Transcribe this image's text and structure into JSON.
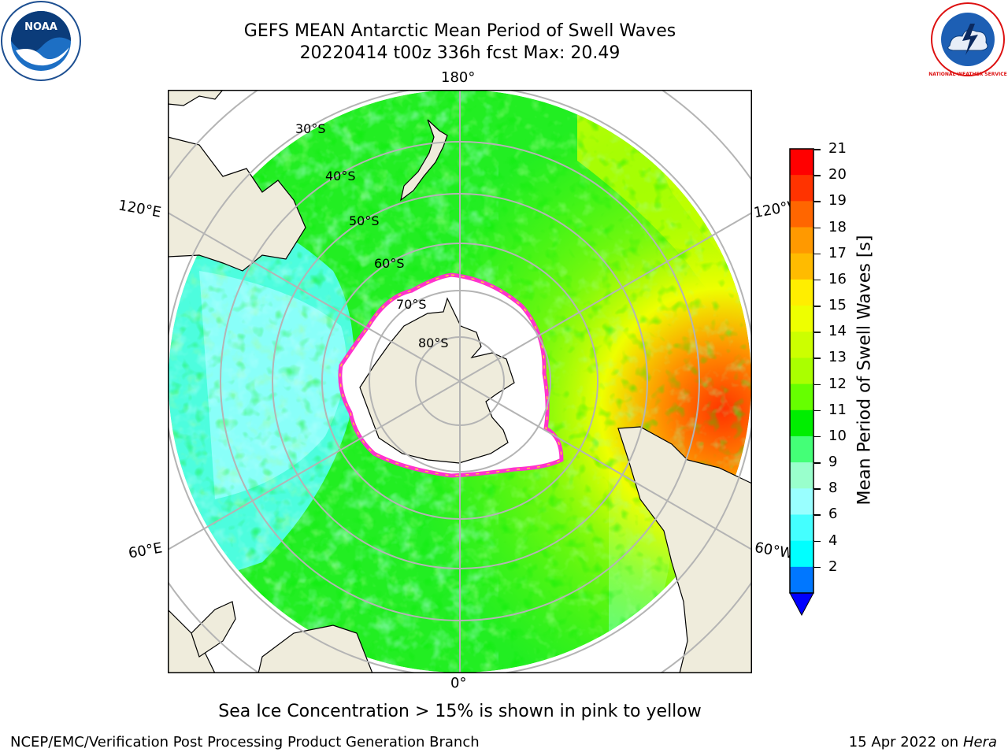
{
  "header": {
    "title_line1": "GEFS MEAN Antarctic Mean Period of Swell Waves",
    "title_line2": "20220414 t00z 336h fcst   Max: 20.49"
  },
  "logos": {
    "left": {
      "icon": "noaa-logo-icon",
      "text": "NOAA"
    },
    "right": {
      "icon": "nws-logo-icon",
      "text": "NATIONAL WEATHER SERVICE"
    }
  },
  "map": {
    "projection": "south-polar-stereographic",
    "longitude_labels": {
      "top": "180°",
      "bottom": "0°",
      "left_upper": "120°E",
      "left_lower": "60°E",
      "right_upper": "120°W",
      "right_lower": "60°W"
    },
    "latitude_labels": [
      "30°S",
      "40°S",
      "50°S",
      "60°S",
      "70°S",
      "80°S"
    ],
    "colors": {
      "land": "#efecdc",
      "ice": "#ffffff",
      "ice_edge": "#ff33cc",
      "gridline": "#b4b4b4"
    }
  },
  "colorbar": {
    "title": "Mean Period of Swell Waves [s]",
    "ticks": [
      "21",
      "20",
      "19",
      "18",
      "17",
      "16",
      "15",
      "14",
      "13",
      "12",
      "11",
      "10",
      "9",
      "8",
      "6",
      "4",
      "2"
    ],
    "levels": [
      {
        "color": "#ff0000"
      },
      {
        "color": "#ff3300"
      },
      {
        "color": "#ff6600"
      },
      {
        "color": "#ff9900"
      },
      {
        "color": "#ffbb00"
      },
      {
        "color": "#ffee00"
      },
      {
        "color": "#eeff00"
      },
      {
        "color": "#ccff00"
      },
      {
        "color": "#aaff00"
      },
      {
        "color": "#66ff00"
      },
      {
        "color": "#00ee00"
      },
      {
        "color": "#44ff77"
      },
      {
        "color": "#99ffcc"
      },
      {
        "color": "#99ffff"
      },
      {
        "color": "#44ffff"
      },
      {
        "color": "#00ffff"
      },
      {
        "color": "#0077ff"
      }
    ],
    "extend_color": "#0000ff"
  },
  "caption": "Sea Ice Concentration > 15% is shown in pink to yellow",
  "footer": {
    "left": "NCEP/EMC/Verification Post Processing Product Generation Branch",
    "right_prefix": "15 Apr 2022 on ",
    "right_host": "Hera"
  }
}
